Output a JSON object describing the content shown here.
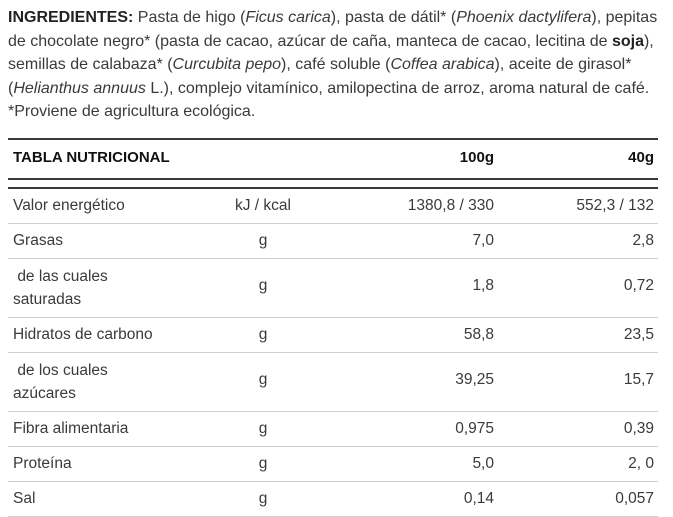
{
  "ingredients": {
    "heading": "INGREDIENTES:",
    "t1": " Pasta de higo (",
    "i1": "Ficus carica",
    "t2": "), pasta de dátil* (",
    "i2": "Phoenix dactylifera",
    "t3": "), pepitas de chocolate negro* (pasta de cacao, azúcar de caña, manteca de cacao, lecitina de ",
    "b1": "soja",
    "t4": "), semillas de calabaza* (",
    "i3": "Curcubita pepo",
    "t5": "), café soluble (",
    "i4": "Coffea arabica",
    "t6": "), aceite de girasol* (",
    "i5": "Helianthus annuus",
    "t7": " L.), complejo vitamínico, amilopectina de arroz, aroma natural de café. *Proviene de agricultura ecológica."
  },
  "table": {
    "headers": {
      "label": "TABLA NUTRICIONAL",
      "col100": "100g",
      "col40": "40g"
    },
    "rows": [
      {
        "label": "Valor energético",
        "unit": "kJ / kcal",
        "v100": "1380,8 / 330",
        "v40": "552,3 / 132"
      },
      {
        "label": "Grasas",
        "unit": "g",
        "v100": "7,0",
        "v40": "2,8"
      },
      {
        "label": " de las cuales saturadas",
        "unit": "g",
        "v100": "1,8",
        "v40": "0,72"
      },
      {
        "label": "Hidratos de carbono",
        "unit": "g",
        "v100": "58,8",
        "v40": "23,5"
      },
      {
        "label": " de los cuales azúcares",
        "unit": "g",
        "v100": "39,25",
        "v40": "15,7"
      },
      {
        "label": "Fibra alimentaria",
        "unit": "g",
        "v100": "0,975",
        "v40": "0,39"
      },
      {
        "label": "Proteína",
        "unit": "g",
        "v100": "5,0",
        "v40": "2, 0"
      },
      {
        "label": "Sal",
        "unit": "g",
        "v100": "0,14",
        "v40": "0,057"
      }
    ]
  }
}
